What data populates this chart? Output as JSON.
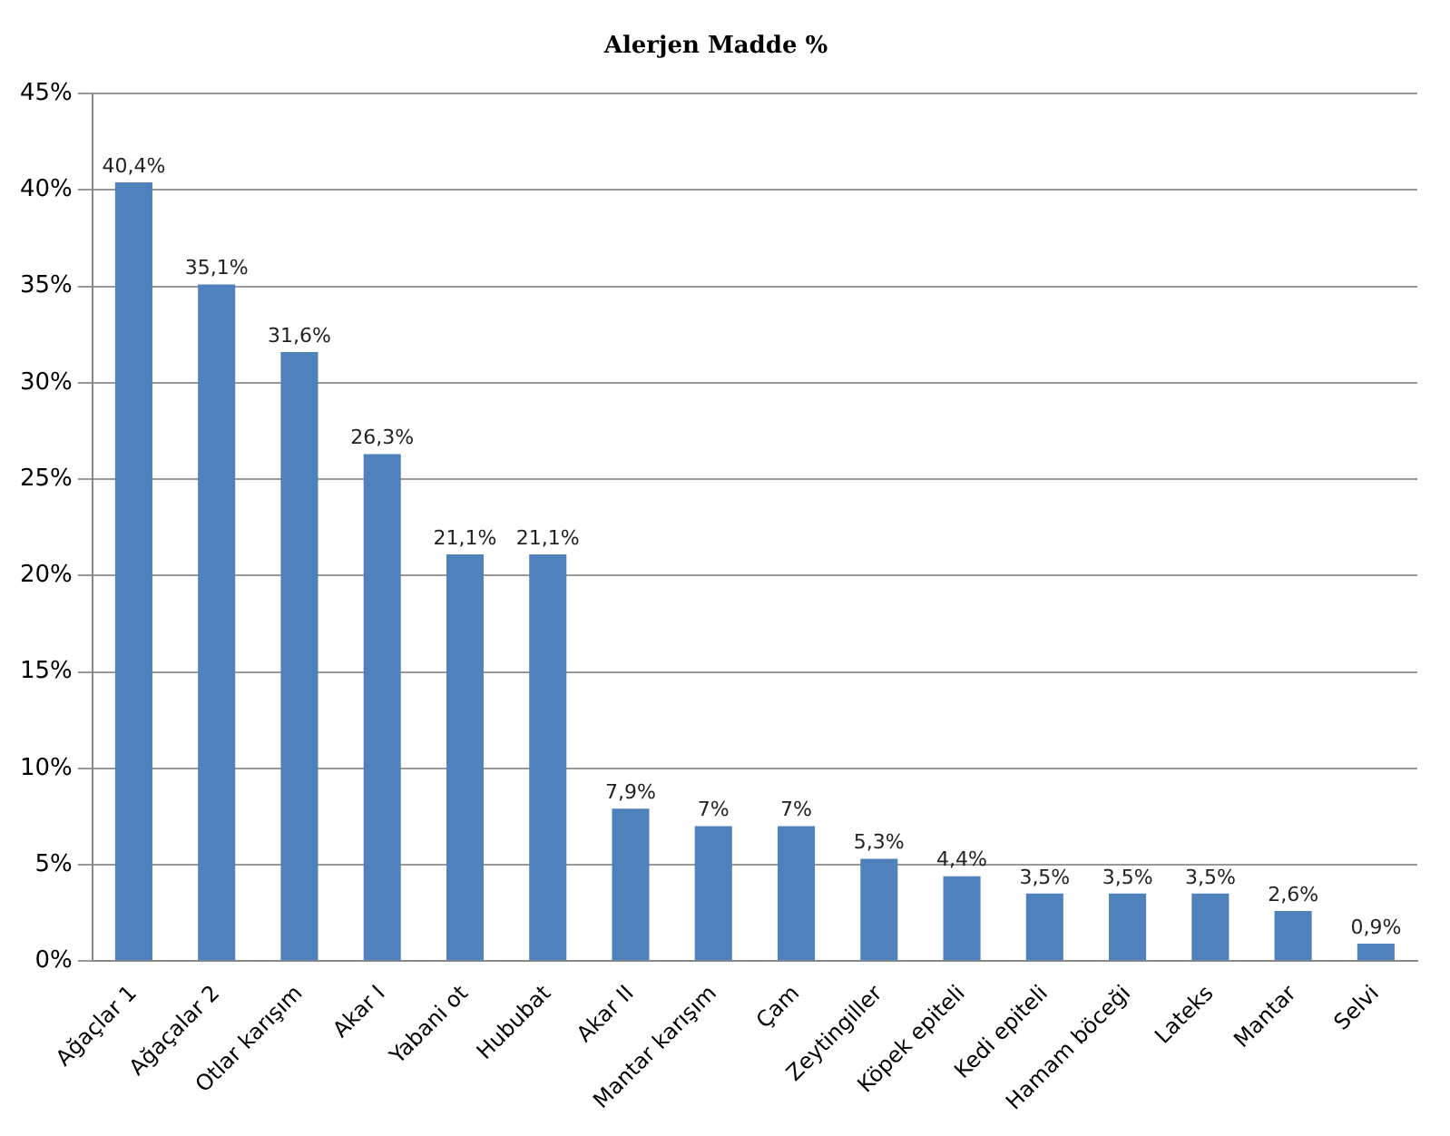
{
  "chart_data": {
    "type": "bar",
    "title": "Alerjen Madde %",
    "categories": [
      "Ağaçlar 1",
      "Ağaçalar 2",
      "Otlar karışım",
      "Akar I",
      "Yabani ot",
      "Hububat",
      "Akar II",
      "Mantar karışım",
      "Çam",
      "Zeytingiller",
      "Köpek epiteli",
      "Kedi epiteli",
      "Hamam böceği",
      "Lateks",
      "Mantar",
      "Selvi"
    ],
    "values": [
      40.4,
      35.1,
      31.6,
      26.3,
      21.1,
      21.1,
      7.9,
      7,
      7,
      5.3,
      4.4,
      3.5,
      3.5,
      3.5,
      2.6,
      0.9
    ],
    "value_labels": [
      "40,4%",
      "35,1%",
      "31,6%",
      "26,3%",
      "21,1%",
      "21,1%",
      "7,9%",
      "7%",
      "7%",
      "5,3%",
      "4,4%",
      "3,5%",
      "3,5%",
      "3,5%",
      "2,6%",
      "0,9%"
    ],
    "color": "#4f81bd",
    "ylim": [
      0,
      45
    ],
    "yticks": [
      {
        "value": 0,
        "label": "0%"
      },
      {
        "value": 5,
        "label": "5%"
      },
      {
        "value": 10,
        "label": "10%"
      },
      {
        "value": 15,
        "label": "15%"
      },
      {
        "value": 20,
        "label": "20%"
      },
      {
        "value": 25,
        "label": "25%"
      },
      {
        "value": 30,
        "label": "30%"
      },
      {
        "value": 35,
        "label": "35%"
      },
      {
        "value": 40,
        "label": "40%"
      },
      {
        "value": 45,
        "label": "45%"
      }
    ],
    "grid": "y",
    "legend": false
  }
}
